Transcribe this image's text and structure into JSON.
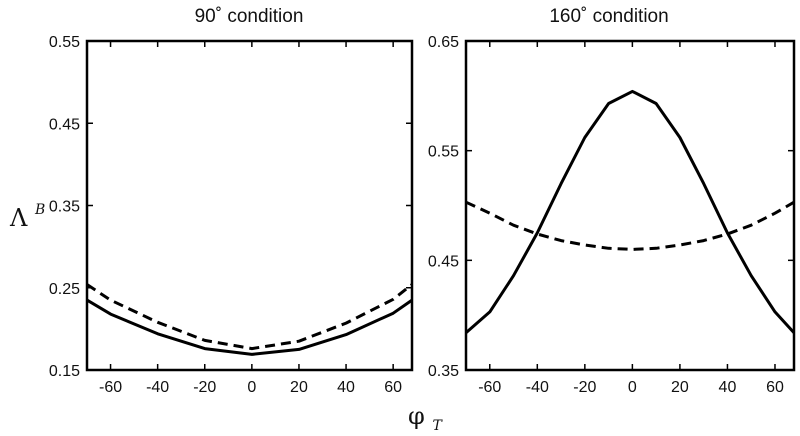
{
  "chart_data": [
    {
      "type": "line",
      "title": "90˚ condition",
      "ylabel": "Λ",
      "ylabel_sup": "B",
      "xlim": [
        -70,
        68
      ],
      "ylim": [
        0.15,
        0.55
      ],
      "xticks": [
        -60,
        -40,
        -20,
        0,
        20,
        40,
        60
      ],
      "yticks": [
        0.15,
        0.25,
        0.35,
        0.45,
        0.55
      ],
      "grid": false,
      "x": [
        -70,
        -60,
        -40,
        -20,
        0,
        20,
        40,
        60,
        68
      ],
      "series": [
        {
          "style": "solid",
          "values": [
            0.235,
            0.218,
            0.194,
            0.176,
            0.169,
            0.175,
            0.193,
            0.219,
            0.235
          ]
        },
        {
          "style": "dashed",
          "values": [
            0.254,
            0.235,
            0.208,
            0.186,
            0.176,
            0.185,
            0.207,
            0.236,
            0.254
          ]
        }
      ]
    },
    {
      "type": "line",
      "title": "160˚ condition",
      "xlim": [
        -70,
        68
      ],
      "ylim": [
        0.35,
        0.65
      ],
      "xticks": [
        -60,
        -40,
        -20,
        0,
        20,
        40,
        60
      ],
      "yticks": [
        0.35,
        0.45,
        0.55,
        0.65
      ],
      "grid": false,
      "x": [
        -70,
        -60,
        -50,
        -40,
        -30,
        -20,
        -10,
        0,
        10,
        20,
        30,
        40,
        50,
        60,
        68
      ],
      "series": [
        {
          "style": "solid",
          "values": [
            0.384,
            0.403,
            0.436,
            0.475,
            0.52,
            0.562,
            0.593,
            0.604,
            0.593,
            0.562,
            0.52,
            0.475,
            0.436,
            0.403,
            0.384
          ]
        },
        {
          "style": "dashed",
          "values": [
            0.503,
            0.493,
            0.482,
            0.474,
            0.468,
            0.464,
            0.461,
            0.46,
            0.461,
            0.464,
            0.468,
            0.474,
            0.482,
            0.493,
            0.503
          ]
        }
      ]
    }
  ],
  "xlabel": "φ",
  "xlabel_sub": "T"
}
